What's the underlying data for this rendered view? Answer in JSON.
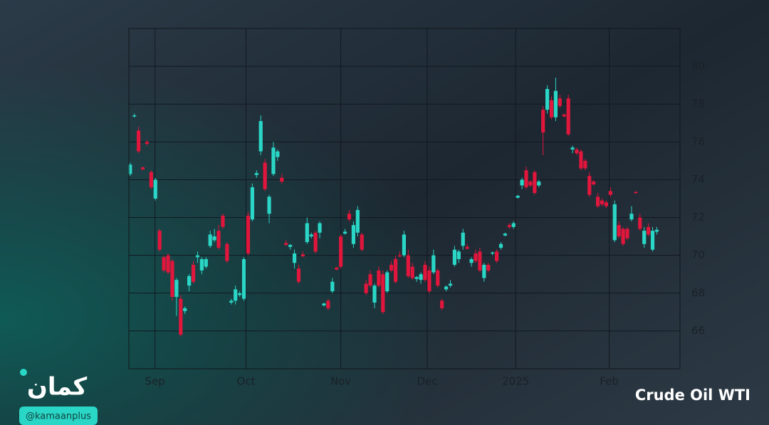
{
  "chart_data": {
    "type": "candlestick",
    "title": "Crude Oil WTI",
    "xlim": [
      -0.3,
      130.5
    ],
    "ylim": [
      64,
      82
    ],
    "xticks": [
      {
        "value": 5.9,
        "label": "Sep"
      },
      {
        "value": 27.5,
        "label": "Oct"
      },
      {
        "value": 50.0,
        "label": "Nov"
      },
      {
        "value": 70.5,
        "label": "Dec"
      },
      {
        "value": 91.5,
        "label": "2025"
      },
      {
        "value": 113.7,
        "label": "Feb"
      }
    ],
    "yticks": [
      66,
      68,
      70,
      72,
      74,
      76,
      78,
      80
    ],
    "grid": true,
    "up_color": "#2ad6c6",
    "down_color": "#e0163c",
    "series": [
      {
        "name": "WTI",
        "open": [
          74.3,
          77.35,
          76.6,
          74.65,
          76.0,
          74.4,
          73.0,
          71.3,
          69.9,
          70.0,
          69.7,
          67.8,
          67.7,
          67.05,
          68.4,
          69.5,
          69.9,
          69.2,
          69.4,
          70.5,
          70.8,
          71.3,
          72.1,
          70.6,
          67.5,
          67.6,
          67.9,
          67.7,
          72.1,
          71.9,
          74.25,
          75.5,
          74.9,
          72.2,
          74.3,
          75.2,
          74.1,
          70.65,
          70.45,
          69.6,
          69.3,
          70.05,
          70.7,
          71.0,
          71.2,
          71.2,
          67.35,
          67.6,
          68.1,
          69.35,
          71.0,
          71.15,
          72.2,
          70.6,
          71.2,
          71.1,
          68.5,
          69.0,
          67.5,
          69.2,
          69.0,
          68.1,
          69.5,
          69.8,
          70.0,
          70.0,
          70.0,
          69.4,
          68.75,
          68.7,
          69.5,
          69.2,
          69.1,
          69.2,
          67.6,
          68.2,
          68.4,
          69.5,
          69.8,
          70.5,
          70.45,
          69.6,
          70.1,
          70.2,
          68.8,
          69.5,
          70.1,
          70.2,
          70.4,
          71.05,
          71.6,
          71.5,
          73.05,
          73.7,
          74.5,
          73.9,
          74.4,
          73.7,
          77.7,
          77.7,
          78.2,
          77.3,
          78.3,
          77.45,
          78.3,
          75.6,
          75.6,
          75.5,
          75.0,
          74.2,
          73.9,
          73.1,
          72.9,
          72.8,
          73.4,
          70.8,
          71.6,
          71.4,
          71.4,
          71.9,
          73.35,
          72.0,
          70.6,
          71.5,
          70.3,
          71.25
        ],
        "high": [
          74.9,
          77.5,
          76.8,
          74.7,
          76.1,
          74.5,
          74.1,
          71.4,
          70.0,
          70.1,
          69.8,
          68.8,
          67.9,
          67.3,
          69.0,
          69.7,
          70.2,
          69.9,
          69.9,
          71.3,
          71.4,
          71.6,
          72.2,
          70.7,
          67.7,
          68.4,
          68.1,
          69.9,
          72.3,
          73.8,
          74.5,
          77.4,
          75.1,
          73.2,
          76.0,
          75.6,
          74.3,
          70.8,
          70.6,
          70.3,
          69.5,
          70.2,
          72.0,
          71.2,
          71.3,
          71.8,
          67.5,
          67.7,
          68.8,
          69.4,
          71.1,
          71.4,
          72.4,
          71.8,
          72.6,
          71.2,
          68.7,
          69.2,
          68.5,
          69.4,
          69.2,
          69.2,
          69.7,
          70.0,
          70.2,
          71.3,
          70.3,
          69.6,
          68.9,
          69.1,
          69.7,
          69.4,
          70.3,
          69.3,
          67.7,
          68.4,
          68.7,
          70.5,
          70.3,
          71.4,
          70.6,
          69.9,
          70.3,
          70.4,
          69.6,
          69.6,
          70.2,
          70.3,
          70.7,
          71.2,
          71.7,
          71.8,
          73.2,
          74.1,
          74.7,
          74.0,
          74.5,
          74.0,
          77.9,
          79.0,
          78.4,
          79.4,
          78.5,
          77.5,
          78.5,
          75.8,
          75.7,
          75.6,
          75.1,
          74.4,
          74.0,
          73.3,
          73.0,
          72.9,
          73.6,
          72.9,
          71.8,
          71.5,
          71.5,
          72.6,
          73.4,
          72.2,
          71.5,
          71.7,
          71.5,
          71.5
        ],
        "low": [
          74.2,
          77.3,
          75.4,
          74.5,
          75.8,
          73.5,
          72.9,
          70.2,
          69.1,
          69.0,
          67.6,
          66.8,
          65.7,
          66.9,
          68.1,
          68.5,
          69.6,
          69.0,
          69.3,
          70.4,
          70.7,
          70.3,
          71.4,
          69.6,
          67.4,
          67.4,
          67.8,
          67.6,
          70.0,
          71.8,
          74.1,
          75.3,
          73.4,
          71.7,
          74.2,
          75.0,
          73.8,
          70.5,
          70.3,
          69.3,
          68.5,
          69.9,
          70.6,
          70.9,
          70.1,
          70.9,
          67.3,
          67.1,
          68.0,
          69.2,
          69.3,
          71.1,
          71.8,
          70.4,
          71.0,
          70.2,
          67.9,
          68.3,
          67.2,
          68.3,
          66.9,
          68.0,
          69.1,
          68.5,
          69.9,
          69.9,
          68.8,
          68.7,
          68.6,
          68.5,
          68.6,
          68.0,
          69.0,
          68.3,
          67.1,
          68.1,
          68.3,
          69.4,
          69.6,
          70.3,
          70.3,
          69.4,
          69.6,
          69.1,
          68.6,
          69.1,
          70.0,
          69.6,
          70.3,
          71.0,
          71.4,
          71.4,
          73.0,
          73.5,
          73.5,
          73.6,
          73.2,
          73.6,
          75.3,
          77.5,
          77.2,
          77.1,
          77.8,
          77.3,
          76.3,
          75.4,
          75.3,
          74.5,
          74.5,
          73.1,
          73.7,
          72.5,
          72.6,
          72.5,
          73.1,
          70.7,
          70.9,
          70.5,
          70.8,
          71.8,
          73.25,
          71.3,
          70.4,
          71.0,
          70.2,
          71.1
        ],
        "close": [
          74.8,
          77.4,
          75.5,
          74.55,
          75.9,
          73.6,
          74.0,
          70.3,
          69.2,
          69.1,
          67.8,
          68.7,
          65.8,
          67.2,
          68.9,
          68.6,
          70.0,
          69.8,
          69.8,
          71.1,
          71.0,
          70.4,
          71.5,
          69.7,
          67.6,
          68.2,
          68.0,
          69.8,
          70.1,
          73.6,
          74.35,
          77.1,
          73.5,
          73.1,
          75.7,
          75.5,
          73.9,
          70.55,
          70.55,
          70.1,
          68.6,
          69.95,
          71.7,
          71.1,
          70.2,
          71.7,
          67.45,
          67.2,
          68.6,
          69.25,
          69.4,
          71.25,
          71.9,
          71.6,
          72.4,
          70.3,
          68.0,
          68.4,
          68.4,
          68.4,
          67.0,
          69.1,
          69.2,
          68.6,
          69.95,
          71.1,
          68.9,
          68.8,
          68.85,
          69.0,
          68.7,
          68.1,
          70.0,
          68.4,
          67.2,
          68.35,
          68.5,
          70.3,
          70.2,
          71.2,
          70.35,
          69.8,
          69.7,
          69.2,
          69.5,
          69.2,
          70.15,
          69.7,
          70.6,
          71.15,
          71.5,
          71.7,
          73.15,
          74.0,
          73.6,
          73.7,
          73.3,
          73.9,
          76.5,
          78.8,
          77.3,
          78.7,
          77.9,
          77.35,
          76.4,
          75.7,
          75.4,
          74.6,
          74.6,
          73.2,
          73.75,
          72.6,
          72.7,
          72.6,
          73.2,
          72.7,
          71.0,
          70.6,
          70.9,
          72.2,
          73.3,
          71.4,
          71.3,
          71.1,
          71.3,
          71.35
        ]
      }
    ]
  },
  "logo": {
    "name": "كمان",
    "handle": "@kamaanplus"
  }
}
